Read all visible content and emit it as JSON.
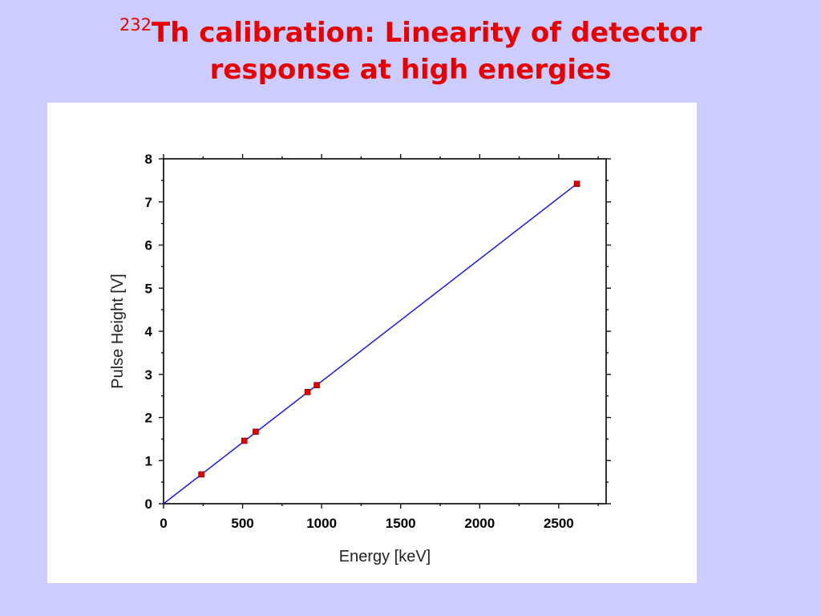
{
  "slide": {
    "title_superscript": "232",
    "title_line1": "Th calibration: Linearity of detector",
    "title_line2": "response at high energies",
    "title_color": "#e60000",
    "background_color": "#ccccff"
  },
  "chart_data": {
    "type": "scatter",
    "title": "",
    "xlabel": "Energy [keV]",
    "ylabel": "Pulse Height [V]",
    "xlim": [
      0,
      2800
    ],
    "ylim": [
      0,
      8
    ],
    "x_ticks": [
      0,
      500,
      1000,
      1500,
      2000,
      2500
    ],
    "y_ticks": [
      0,
      1,
      2,
      3,
      4,
      5,
      6,
      7,
      8
    ],
    "grid": false,
    "series": [
      {
        "type": "scatter",
        "color": "#dd0000",
        "points": [
          {
            "x": 239,
            "y": 0.68
          },
          {
            "x": 511,
            "y": 1.46
          },
          {
            "x": 583,
            "y": 1.67
          },
          {
            "x": 911,
            "y": 2.59
          },
          {
            "x": 969,
            "y": 2.75
          },
          {
            "x": 2615,
            "y": 7.42
          }
        ]
      },
      {
        "type": "line",
        "color": "#1a1adc",
        "points": [
          {
            "x": 0,
            "y": 0
          },
          {
            "x": 2615,
            "y": 7.42
          }
        ]
      }
    ]
  }
}
